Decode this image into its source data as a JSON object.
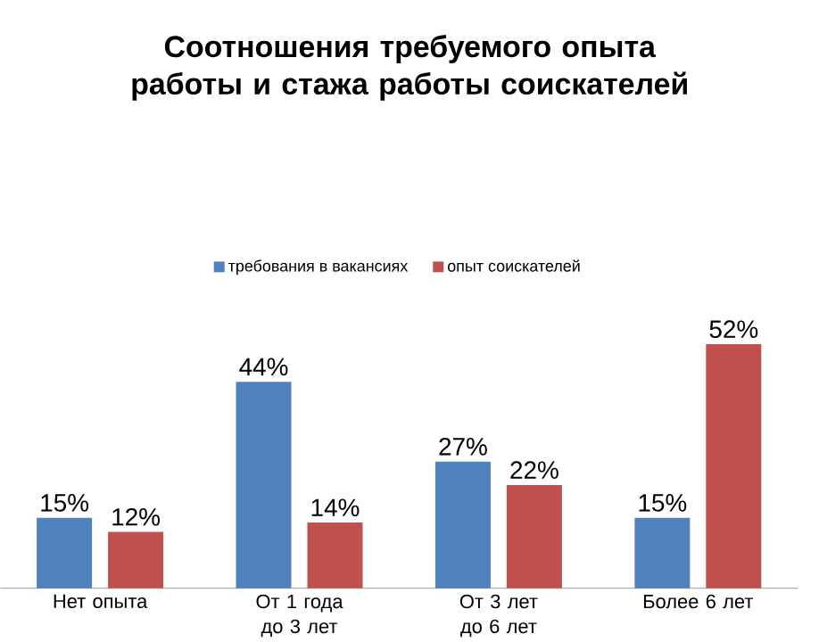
{
  "chart_data": {
    "type": "bar",
    "title": "Соотношения требуемого опыта работы и стажа работы соискателей",
    "categories": [
      "Нет опыта",
      "От 1 года до 3 лет",
      "От 3 лет до 6 лет",
      "Более 6 лет"
    ],
    "series": [
      {
        "name": "требования в вакансиях",
        "color": "#4f81bd",
        "values": [
          15,
          44,
          27,
          15
        ],
        "value_labels": [
          "15%",
          "44%",
          "27%",
          "15%"
        ]
      },
      {
        "name": "опыт соискателей",
        "color": "#c0504d",
        "values": [
          12,
          14,
          22,
          52
        ],
        "value_labels": [
          "12%",
          "14%",
          "22%",
          "52%"
        ]
      }
    ],
    "legend": "top"
  }
}
